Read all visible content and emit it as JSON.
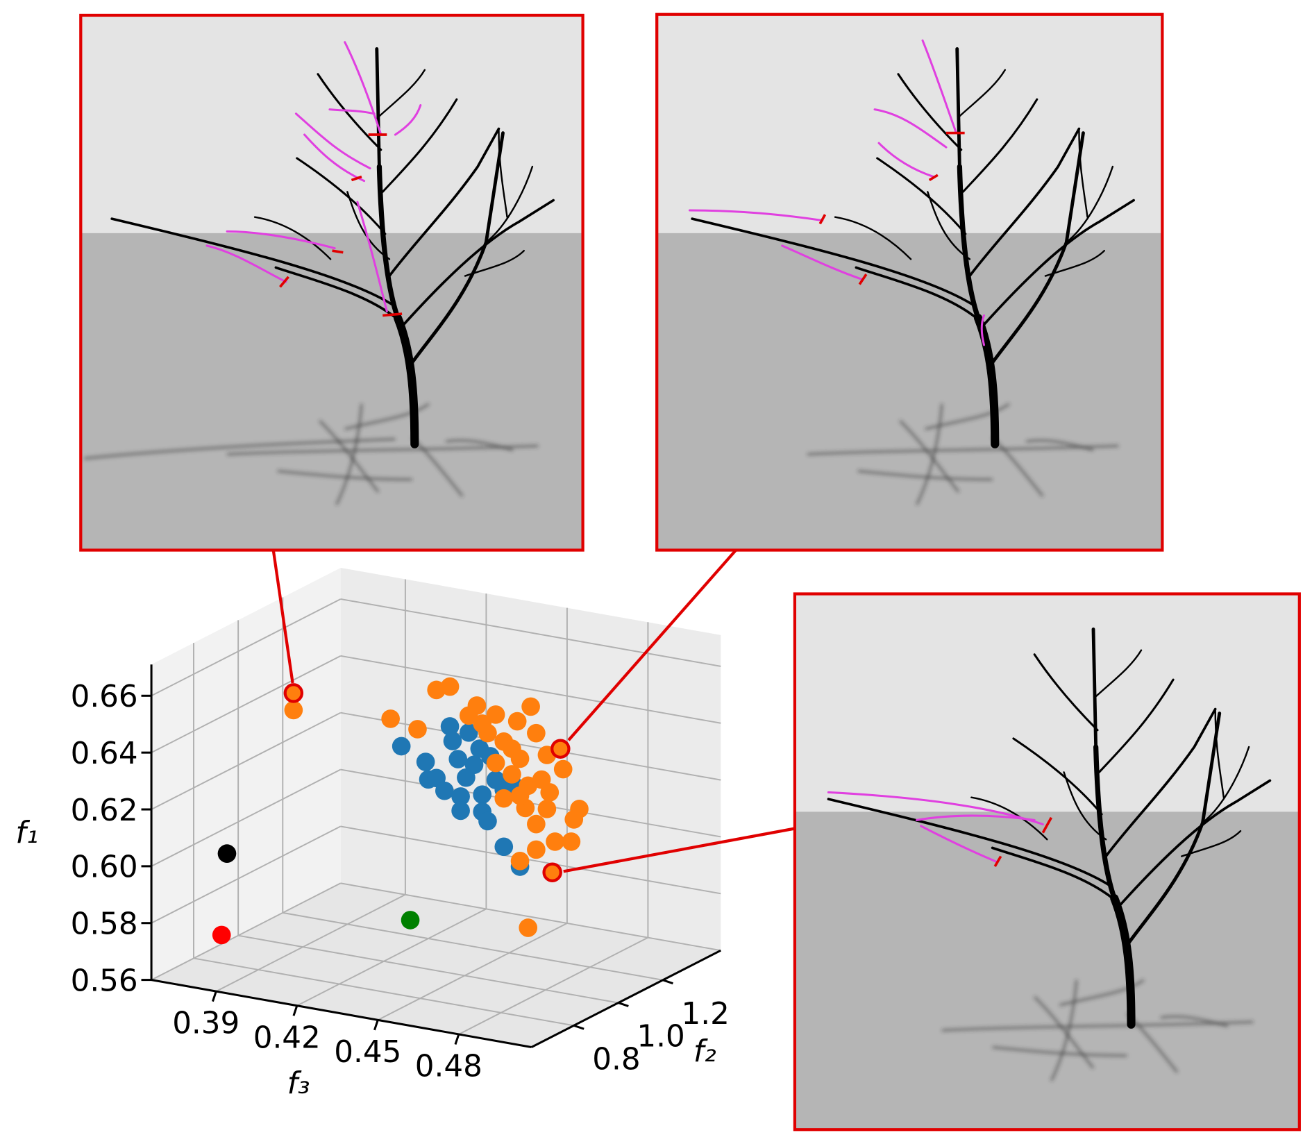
{
  "chart_data": {
    "type": "scatter3d",
    "xlabel": "f₃",
    "ylabel": "f₂",
    "zlabel": "f₁",
    "xlim": [
      0.366,
      0.507
    ],
    "xticks": [
      0.39,
      0.42,
      0.45,
      0.48
    ],
    "ylim": [
      0.61,
      1.46
    ],
    "yticks": [
      0.8,
      {
        "value": 1.0,
        "label": "1.0"
      },
      1.2
    ],
    "zlim": [
      0.56,
      0.671
    ],
    "zticks": [
      0.56,
      0.58,
      {
        "value": 0.6,
        "label": "0.60"
      },
      0.62,
      0.64,
      0.66
    ],
    "grid": true,
    "series": [
      {
        "color": "#1f77b4",
        "x": [
          0.41,
          0.419,
          0.42,
          0.428,
          0.429,
          0.431,
          0.423,
          0.426,
          0.432,
          0.432,
          0.44,
          0.44,
          0.448,
          0.454,
          0.435,
          0.437,
          0.443,
          0.445,
          0.448,
          0.442,
          0.451,
          0.434,
          0.439
        ],
        "y": [
          1.2,
          1.2,
          1.2,
          1.2,
          1.2,
          1.2,
          1.2,
          1.2,
          1.2,
          1.2,
          1.2,
          1.2,
          1.2,
          1.2,
          1.2,
          1.2,
          1.2,
          1.2,
          1.2,
          1.2,
          1.2,
          1.2,
          1.2
        ],
        "values": [
          0.626,
          0.622,
          0.616,
          0.636,
          0.631,
          0.625,
          0.617,
          0.613,
          0.612,
          0.607,
          0.614,
          0.608,
          0.597,
          0.591,
          0.635,
          0.624,
          0.628,
          0.62,
          0.617,
          0.605,
          0.62,
          0.619,
          0.63
        ]
      },
      {
        "color": "#ff7f0e",
        "x": [
          0.423,
          0.428,
          0.406,
          0.416,
          0.438,
          0.445,
          0.458,
          0.453,
          0.46,
          0.448,
          0.454,
          0.464,
          0.47,
          0.451,
          0.457,
          0.465,
          0.476,
          0.474,
          0.46,
          0.467,
          0.473,
          0.454,
          0.46,
          0.457,
          0.435,
          0.442,
          0.448,
          0.456,
          0.464,
          0.454,
          0.462,
          0.445,
          0.451,
          0.44,
          0.37
        ],
        "y": [
          1.2,
          1.2,
          1.2,
          1.2,
          1.2,
          1.2,
          1.2,
          1.2,
          1.2,
          1.2,
          1.2,
          1.2,
          1.2,
          1.2,
          1.2,
          1.2,
          1.2,
          1.2,
          1.2,
          1.2,
          1.2,
          1.2,
          1.2,
          1.2,
          1.2,
          1.2,
          1.2,
          1.2,
          1.2,
          1.2,
          1.2,
          1.2,
          1.2,
          1.2,
          1.2
        ],
        "values": [
          0.648,
          0.65,
          0.635,
          0.633,
          0.645,
          0.643,
          0.648,
          0.642,
          0.639,
          0.634,
          0.629,
          0.632,
          0.628,
          0.623,
          0.62,
          0.619,
          0.615,
          0.611,
          0.607,
          0.602,
          0.603,
          0.593,
          0.598,
          0.57,
          0.641,
          0.636,
          0.614,
          0.612,
          0.613,
          0.616,
          0.623,
          0.626,
          0.632,
          0.639,
          0.632
        ]
      },
      {
        "color": "#000000",
        "x": [
          0.38
        ],
        "y": [
          0.78
        ],
        "values": [
          0.6
        ]
      },
      {
        "color": "#ff0000",
        "x": [
          0.378
        ],
        "y": [
          0.78
        ],
        "values": [
          0.571
        ]
      },
      {
        "color": "#008000",
        "x": [
          0.448
        ],
        "y": [
          0.78
        ],
        "values": [
          0.588
        ]
      },
      {
        "color": "#ff7f0e",
        "edgecolor": "#e00000",
        "x": [
          0.37,
          0.469,
          0.466
        ],
        "y": [
          1.2,
          1.2,
          1.2
        ],
        "values": [
          0.638,
          0.635,
          0.591
        ]
      }
    ]
  }
}
